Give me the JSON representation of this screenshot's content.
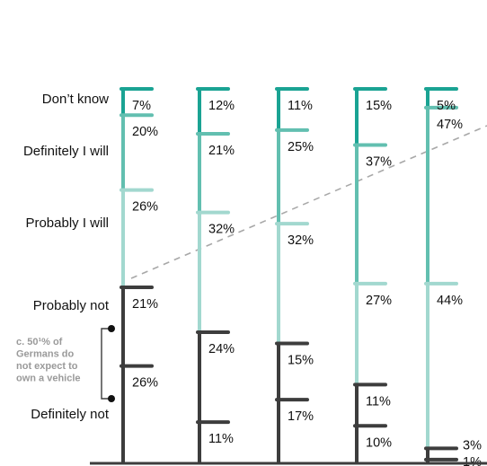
{
  "chart_data": {
    "type": "bar",
    "stacked": true,
    "orientation": "vertical",
    "categories_count": 5,
    "segments": [
      "Don’t know",
      "Definitely I will",
      "Probably I will",
      "Probably not",
      "Definitely not"
    ],
    "series": [
      {
        "name": "Don’t know",
        "values": [
          7,
          12,
          11,
          15,
          5
        ]
      },
      {
        "name": "Definitely I will",
        "values": [
          20,
          21,
          25,
          37,
          47
        ]
      },
      {
        "name": "Probably I will",
        "values": [
          26,
          32,
          32,
          27,
          44
        ]
      },
      {
        "name": "Probably not",
        "values": [
          21,
          24,
          15,
          11,
          3
        ]
      },
      {
        "name": "Definitely not",
        "values": [
          26,
          11,
          17,
          10,
          1
        ]
      }
    ],
    "value_labels": [
      [
        "7%",
        "20%",
        "26%",
        "21%",
        "26%"
      ],
      [
        "12%",
        "21%",
        "32%",
        "24%",
        "11%"
      ],
      [
        "11%",
        "25%",
        "32%",
        "15%",
        "17%"
      ],
      [
        "15%",
        "37%",
        "27%",
        "11%",
        "10%"
      ],
      [
        "5%",
        "47%",
        "44%",
        "3%",
        "1%"
      ]
    ],
    "colors": {
      "Don’t know": "#1aa393",
      "Definitely I will": "#62bfb0",
      "Probably I will": "#a2d8cf",
      "Probably not": "#3d3d3d",
      "Definitely not": "#3d3d3d"
    },
    "annotation": "c. 50¹% of Germans do not expect to own a vehicle",
    "annotation_lines": [
      "c. 50¹% of",
      "Germans do",
      "not expect to",
      "own a vehicle"
    ],
    "trend_line": "dashed"
  }
}
